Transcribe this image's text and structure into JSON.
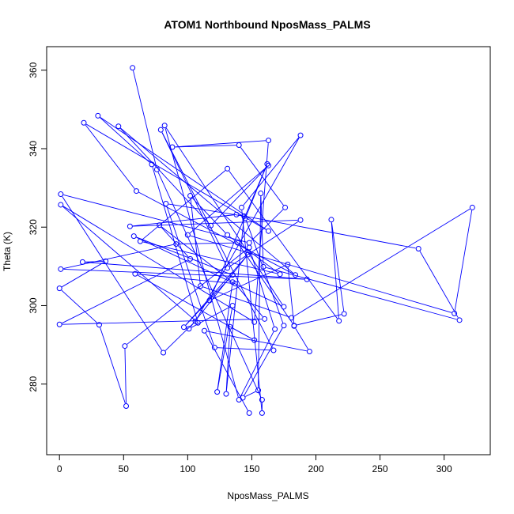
{
  "chart_data": {
    "type": "scatter",
    "title": "ATOM1 Northbound NposMass_PALMS",
    "xlabel": "NposMass_PALMS",
    "ylabel": "Theta (K)",
    "xlim": [
      -10,
      336
    ],
    "ylim": [
      262,
      366
    ],
    "xticks": [
      0,
      50,
      100,
      150,
      200,
      250,
      300
    ],
    "yticks": [
      280,
      300,
      320,
      340,
      360
    ],
    "grid": false,
    "legend": "none",
    "colors": {
      "series": "#0000ff",
      "axes": "#000000",
      "background": "#ffffff"
    },
    "series": [
      {
        "marker": "open-circle",
        "connected": true,
        "points": [
          [
            57,
            360.6
          ],
          [
            76,
            334.7
          ],
          [
            158,
            276
          ],
          [
            158,
            272.6
          ],
          [
            142,
            325
          ],
          [
            188,
            343.4
          ],
          [
            106,
            296
          ],
          [
            81,
            288
          ],
          [
            1,
            328.4
          ],
          [
            148,
            316
          ],
          [
            176,
            325
          ],
          [
            140,
            340.9
          ],
          [
            88,
            340.4
          ],
          [
            163,
            342.1
          ],
          [
            152,
            295.8
          ],
          [
            1,
            325.7
          ],
          [
            108,
            295.6
          ],
          [
            72,
            336
          ],
          [
            30,
            348.4
          ],
          [
            163,
            319
          ],
          [
            19,
            346.6
          ],
          [
            60,
            329.2
          ],
          [
            184,
            307.8
          ],
          [
            46,
            345.7
          ],
          [
            118,
            320.4
          ],
          [
            163,
            335.7
          ],
          [
            100,
            318
          ],
          [
            308,
            298
          ],
          [
            322,
            325
          ],
          [
            181,
            296.9
          ],
          [
            110,
            305
          ],
          [
            102,
            328
          ],
          [
            131,
            318
          ],
          [
            172,
            308
          ],
          [
            63,
            316.4
          ],
          [
            131,
            334.9
          ],
          [
            218,
            296.1
          ],
          [
            212,
            321.9
          ],
          [
            222,
            297.9
          ],
          [
            183,
            294.9
          ],
          [
            139,
            316
          ],
          [
            91,
            315.7
          ],
          [
            1,
            309.3
          ],
          [
            193,
            306.7
          ],
          [
            18,
            311.1
          ],
          [
            36,
            311.3
          ],
          [
            0,
            304.4
          ],
          [
            31,
            295.1
          ],
          [
            52,
            274.4
          ],
          [
            51,
            289.7
          ],
          [
            148,
            314.8
          ],
          [
            168,
            294
          ],
          [
            140,
            276
          ],
          [
            82,
            345.9
          ],
          [
            175,
            299.7
          ],
          [
            58,
            317.7
          ],
          [
            135,
            307.8
          ],
          [
            97,
            294.5
          ],
          [
            147,
            313
          ],
          [
            101,
            294.1
          ],
          [
            135,
            300
          ],
          [
            123,
            278
          ],
          [
            135,
            306
          ],
          [
            78,
            320.5
          ],
          [
            102,
            311.9
          ],
          [
            0,
            295.2
          ],
          [
            160,
            296.6
          ],
          [
            137,
            305.6
          ],
          [
            59,
            308.1
          ],
          [
            152,
            291.2
          ],
          [
            133,
            294.6
          ],
          [
            130,
            277.5
          ],
          [
            144,
            322.8
          ],
          [
            83,
            326
          ],
          [
            121,
            289.3
          ],
          [
            167,
            288.6
          ],
          [
            79,
            344.8
          ],
          [
            131,
            309.6
          ],
          [
            188,
            321.8
          ],
          [
            55,
            320.2
          ],
          [
            138,
            323.2
          ],
          [
            280,
            314.5
          ],
          [
            312,
            296.3
          ],
          [
            159,
            309.9
          ],
          [
            157,
            328.6
          ],
          [
            155,
            278.4
          ],
          [
            143,
            276.5
          ],
          [
            175,
            294.9
          ],
          [
            145,
            322.3
          ],
          [
            162,
            336.1
          ],
          [
            117,
            301.3
          ],
          [
            178,
            310.5
          ],
          [
            183,
            294.8
          ],
          [
            195,
            288.3
          ],
          [
            113,
            293.6
          ],
          [
            148,
            272.6
          ]
        ]
      }
    ]
  }
}
